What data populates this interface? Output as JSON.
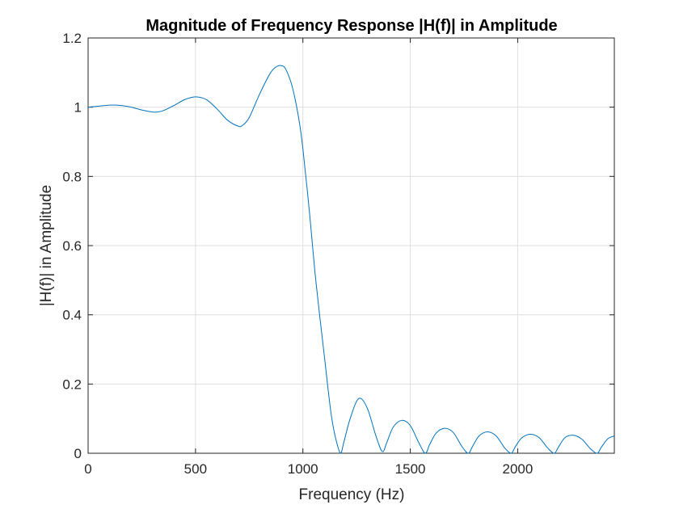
{
  "chart_data": {
    "type": "line",
    "title": "Magnitude of Frequency Response |H(f)| in Amplitude",
    "xlabel": "Frequency (Hz)",
    "ylabel": "|H(f)| in Amplitude",
    "xlim": [
      0,
      2450
    ],
    "ylim": [
      0,
      1.2
    ],
    "xticks": [
      0,
      500,
      1000,
      1500,
      2000
    ],
    "xtick_labels": [
      "0",
      "500",
      "1000",
      "1500",
      "2000"
    ],
    "yticks": [
      0,
      0.2,
      0.4,
      0.6,
      0.8,
      1,
      1.2
    ],
    "ytick_labels": [
      "0",
      "0.2",
      "0.4",
      "0.6",
      "0.8",
      "1",
      "1.2"
    ],
    "grid": true,
    "series": [
      {
        "color": "#0072bd",
        "x": [
          0,
          50,
          100,
          150,
          200,
          250,
          300,
          320,
          350,
          400,
          450,
          500,
          550,
          600,
          650,
          700,
          720,
          750,
          800,
          850,
          880,
          900,
          920,
          950,
          980,
          1000,
          1030,
          1060,
          1100,
          1130,
          1150,
          1175,
          1190,
          1220,
          1260,
          1300,
          1340,
          1370,
          1390,
          1420,
          1460,
          1500,
          1540,
          1570,
          1590,
          1620,
          1660,
          1700,
          1740,
          1770,
          1790,
          1820,
          1860,
          1900,
          1940,
          1970,
          1990,
          2020,
          2060,
          2100,
          2140,
          2170,
          2190,
          2220,
          2260,
          2300,
          2340,
          2370,
          2390,
          2420,
          2450
        ],
        "y": [
          1.0,
          1.003,
          1.006,
          1.005,
          1.0,
          0.992,
          0.986,
          0.986,
          0.99,
          1.005,
          1.022,
          1.03,
          1.022,
          0.995,
          0.962,
          0.945,
          0.948,
          0.97,
          1.04,
          1.1,
          1.118,
          1.12,
          1.11,
          1.06,
          0.97,
          0.88,
          0.7,
          0.5,
          0.28,
          0.12,
          0.05,
          0.0,
          0.03,
          0.1,
          0.158,
          0.13,
          0.05,
          0.005,
          0.03,
          0.075,
          0.095,
          0.08,
          0.03,
          0.0,
          0.025,
          0.058,
          0.072,
          0.06,
          0.02,
          0.0,
          0.02,
          0.05,
          0.062,
          0.05,
          0.015,
          0.0,
          0.02,
          0.045,
          0.055,
          0.045,
          0.015,
          0.0,
          0.018,
          0.045,
          0.052,
          0.04,
          0.012,
          0.0,
          0.018,
          0.042,
          0.05
        ]
      }
    ]
  }
}
